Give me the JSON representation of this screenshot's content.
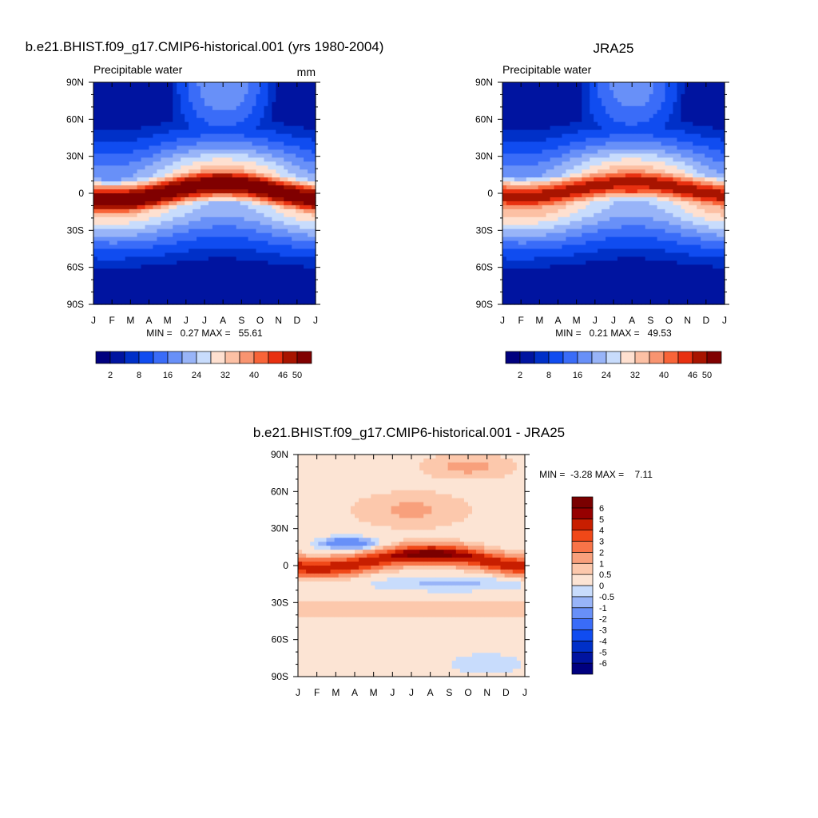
{
  "chart_data": [
    {
      "type": "heatmap",
      "title": "b.e21.BHIST.f09_g17.CMIP6-historical.001 (yrs 1980-2004)",
      "subtitle_left": "Precipitable water",
      "subtitle_right": "mm",
      "x_ticks": [
        "J",
        "F",
        "M",
        "A",
        "M",
        "J",
        "J",
        "A",
        "S",
        "O",
        "N",
        "D",
        "J"
      ],
      "y_ticks": [
        "90N",
        "60N",
        "30N",
        "0",
        "30S",
        "60S",
        "90S"
      ],
      "x_range": [
        0,
        12
      ],
      "y_range": [
        -90,
        90
      ],
      "stats": "MIN =   0.27 MAX =   55.61",
      "field": {
        "itcz_lat_amp": 7,
        "itcz_lat_mean": 1,
        "itcz_phase_month": 7,
        "peak": 54,
        "nh_pole_summer": 20,
        "sh_pole": 3
      },
      "colorbar": {
        "orientation": "horizontal",
        "levels": [
          2,
          5,
          8,
          12,
          16,
          20,
          24,
          28,
          32,
          36,
          40,
          43,
          46,
          50
        ],
        "labels": [
          "2",
          "8",
          "16",
          "24",
          "32",
          "40",
          "46",
          "50"
        ],
        "colors": [
          "#00007f",
          "#0014a0",
          "#0030c8",
          "#104cf0",
          "#3a6cf8",
          "#6890f8",
          "#98b4f8",
          "#c8dcfc",
          "#fee0d0",
          "#fcc0a4",
          "#f89470",
          "#f86438",
          "#e83010",
          "#a81400",
          "#800000"
        ]
      }
    },
    {
      "type": "heatmap",
      "title": "JRA25",
      "subtitle_left": "Precipitable water",
      "subtitle_right": "",
      "x_ticks": [
        "J",
        "F",
        "M",
        "A",
        "M",
        "J",
        "J",
        "A",
        "S",
        "O",
        "N",
        "D",
        "J"
      ],
      "y_ticks": [
        "90N",
        "60N",
        "30N",
        "0",
        "30S",
        "60S",
        "90S"
      ],
      "x_range": [
        0,
        12
      ],
      "y_range": [
        -90,
        90
      ],
      "stats": "MIN =   0.21 MAX =   49.53",
      "field": {
        "itcz_lat_amp": 6,
        "itcz_lat_mean": 3,
        "itcz_phase_month": 7,
        "peak": 48,
        "nh_pole_summer": 19,
        "sh_pole": 2.5
      },
      "colorbar": {
        "orientation": "horizontal",
        "levels": [
          2,
          5,
          8,
          12,
          16,
          20,
          24,
          28,
          32,
          36,
          40,
          43,
          46,
          50
        ],
        "labels": [
          "2",
          "8",
          "16",
          "24",
          "32",
          "40",
          "46",
          "50"
        ],
        "colors": [
          "#00007f",
          "#0014a0",
          "#0030c8",
          "#104cf0",
          "#3a6cf8",
          "#6890f8",
          "#98b4f8",
          "#c8dcfc",
          "#fee0d0",
          "#fcc0a4",
          "#f89470",
          "#f86438",
          "#e83010",
          "#a81400",
          "#800000"
        ]
      }
    },
    {
      "type": "heatmap",
      "title": "b.e21.BHIST.f09_g17.CMIP6-historical.001 - JRA25",
      "subtitle_left": "",
      "subtitle_right": "",
      "x_ticks": [
        "J",
        "F",
        "M",
        "A",
        "M",
        "J",
        "J",
        "A",
        "S",
        "O",
        "N",
        "D",
        "J"
      ],
      "y_ticks": [
        "90N",
        "60N",
        "30N",
        "0",
        "30S",
        "60S",
        "90S"
      ],
      "x_range": [
        0,
        12
      ],
      "y_range": [
        -90,
        90
      ],
      "stats": "MIN =  -3.28 MAX =    7.11",
      "field": {
        "difference": true
      },
      "colorbar": {
        "orientation": "vertical",
        "levels": [
          -6,
          -5,
          -4,
          -3,
          -2,
          -1,
          -0.5,
          0,
          0.5,
          1,
          2,
          3,
          4,
          5,
          6
        ],
        "labels": [
          "-6",
          "-5",
          "-4",
          "-3",
          "-2",
          "-1",
          "-0.5",
          "0",
          "0.5",
          "1",
          "2",
          "3",
          "4",
          "5",
          "6"
        ],
        "colors": [
          "#00007f",
          "#0014a0",
          "#0030c8",
          "#104cf0",
          "#3a6cf8",
          "#6890f8",
          "#98b4f8",
          "#c8dcfc",
          "#fce4d4",
          "#fcc8ac",
          "#f8a07c",
          "#f87448",
          "#f04818",
          "#c81e00",
          "#960000",
          "#7a0000"
        ]
      }
    }
  ]
}
